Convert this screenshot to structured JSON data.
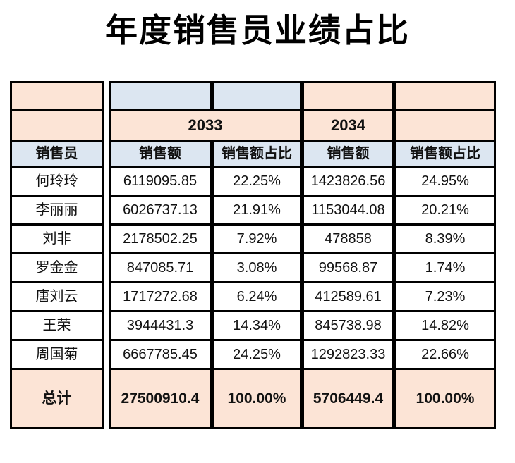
{
  "title": "年度销售员业绩占比",
  "table": {
    "years": {
      "y2033": "2033",
      "y2034": "2034"
    },
    "headers": {
      "salesperson": "销售员",
      "sales": "销售额",
      "share": "销售额占比"
    },
    "rows": [
      {
        "name": "何玲玲",
        "sales2033": "6119095.85",
        "share2033": "22.25%",
        "sales2034": "1423826.56",
        "share2034": "24.95%"
      },
      {
        "name": "李丽丽",
        "sales2033": "6026737.13",
        "share2033": "21.91%",
        "sales2034": "1153044.08",
        "share2034": "20.21%"
      },
      {
        "name": "刘非",
        "sales2033": "2178502.25",
        "share2033": "7.92%",
        "sales2034": "478858",
        "share2034": "8.39%"
      },
      {
        "name": "罗金金",
        "sales2033": "847085.71",
        "share2033": "3.08%",
        "sales2034": "99568.87",
        "share2034": "1.74%"
      },
      {
        "name": "唐刘云",
        "sales2033": "1717272.68",
        "share2033": "6.24%",
        "sales2034": "412589.61",
        "share2034": "7.23%"
      },
      {
        "name": "王荣",
        "sales2033": "3944431.3",
        "share2033": "14.34%",
        "sales2034": "845738.98",
        "share2034": "14.82%"
      },
      {
        "name": "周国菊",
        "sales2033": "6667785.45",
        "share2033": "24.25%",
        "sales2034": "1292823.33",
        "share2034": "22.66%"
      }
    ],
    "total": {
      "label": "总计",
      "sales2033": "27500910.4",
      "share2033": "100.00%",
      "sales2034": "5706449.4",
      "share2034": "100.00%"
    },
    "colors": {
      "peach": "#fce4d6",
      "blue": "#dce6f1",
      "border": "#000000",
      "text": "#111111"
    }
  }
}
